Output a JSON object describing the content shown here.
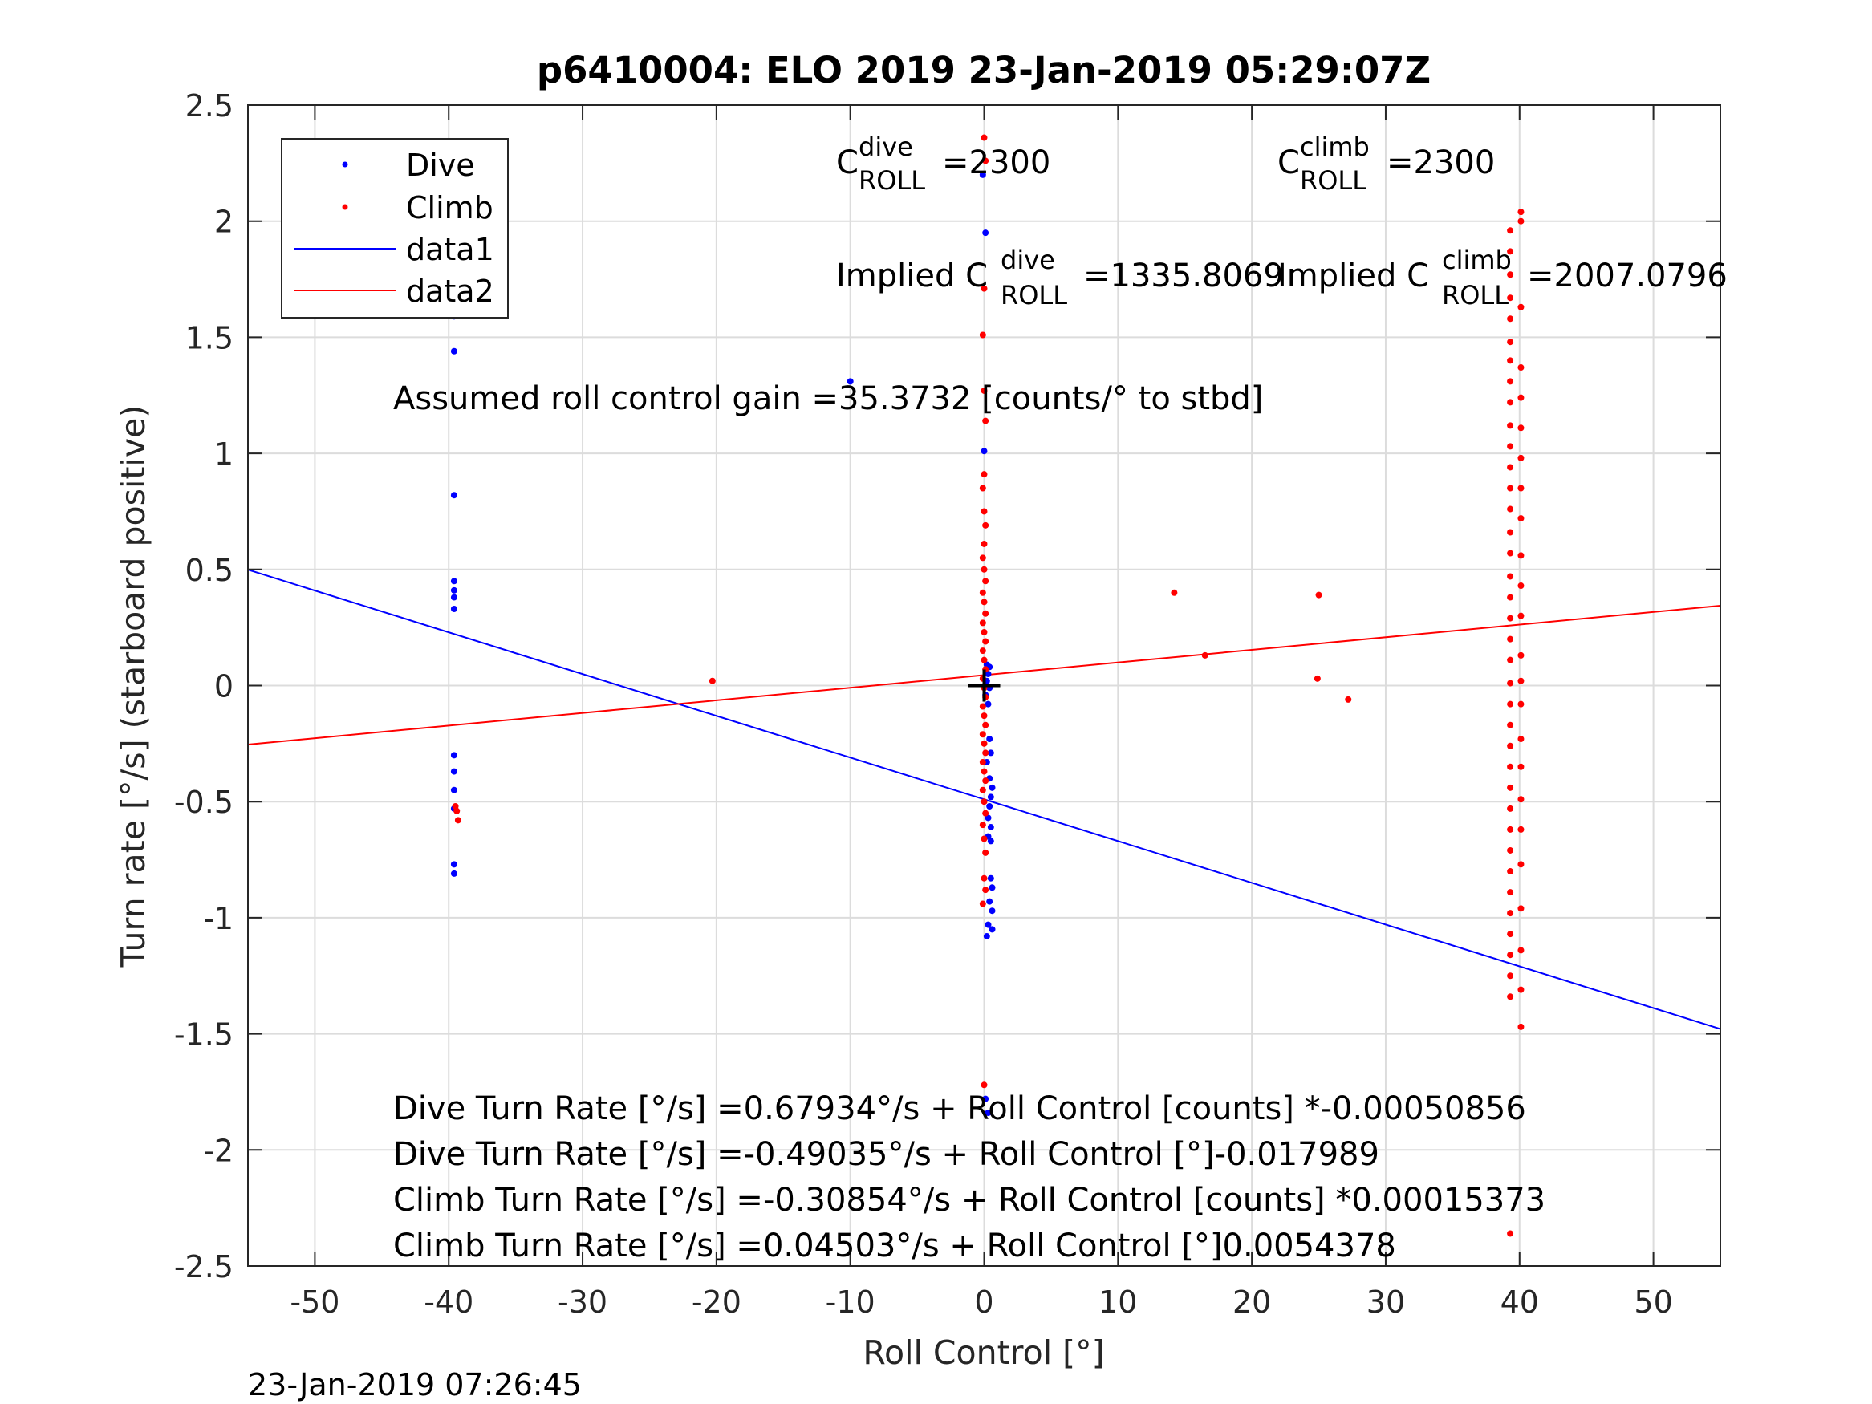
{
  "chart_data": {
    "type": "scatter",
    "title": "p6410004: ELO 2019 23-Jan-2019 05:29:07Z",
    "xlabel": "Roll Control [°]",
    "ylabel": "Turn rate [°/s] (starboard positive)",
    "xlim": [
      -55,
      55
    ],
    "ylim": [
      -2.5,
      2.5
    ],
    "xticks": [
      -50,
      -40,
      -30,
      -20,
      -10,
      0,
      10,
      20,
      30,
      40,
      50
    ],
    "yticks": [
      -2.5,
      -2,
      -1.5,
      -1,
      -0.5,
      0,
      0.5,
      1,
      1.5,
      2,
      2.5
    ],
    "ytick_labels": [
      "-2.5",
      "-2",
      "-1.5",
      "-1",
      "-0.5",
      "0",
      "0.5",
      "1",
      "1.5",
      "2",
      "2.5"
    ],
    "grid": true,
    "legend_position": "top-left",
    "series": [
      {
        "name": "Dive",
        "kind": "points",
        "color": "#0000ff",
        "points": [
          [
            -39.6,
            1.59
          ],
          [
            -39.6,
            1.44
          ],
          [
            -39.6,
            0.82
          ],
          [
            -39.6,
            0.45
          ],
          [
            -39.6,
            0.41
          ],
          [
            -39.6,
            0.38
          ],
          [
            -39.6,
            0.33
          ],
          [
            -39.6,
            -0.3
          ],
          [
            -39.6,
            -0.37
          ],
          [
            -39.6,
            -0.45
          ],
          [
            -39.6,
            -0.53
          ],
          [
            -39.6,
            -0.77
          ],
          [
            -39.6,
            -0.81
          ],
          [
            -10,
            1.31
          ],
          [
            -0.1,
            2.2
          ],
          [
            0.1,
            1.95
          ],
          [
            0,
            1.01
          ],
          [
            0.2,
            0.09
          ],
          [
            0.4,
            0.08
          ],
          [
            0.3,
            0.05
          ],
          [
            0.2,
            0.02
          ],
          [
            0.4,
            -0.01
          ],
          [
            0.1,
            -0.04
          ],
          [
            0.3,
            -0.08
          ],
          [
            0.4,
            -0.23
          ],
          [
            0.5,
            -0.29
          ],
          [
            0.2,
            -0.33
          ],
          [
            0.4,
            -0.4
          ],
          [
            0.6,
            -0.44
          ],
          [
            0.5,
            -0.48
          ],
          [
            0.4,
            -0.52
          ],
          [
            0.3,
            -0.57
          ],
          [
            0.5,
            -0.61
          ],
          [
            0.3,
            -0.65
          ],
          [
            0.5,
            -0.67
          ],
          [
            0.5,
            -0.83
          ],
          [
            0.6,
            -0.87
          ],
          [
            0.4,
            -0.93
          ],
          [
            0.6,
            -0.97
          ],
          [
            0.3,
            -1.03
          ],
          [
            0.6,
            -1.05
          ],
          [
            0.2,
            -1.08
          ],
          [
            0.1,
            -1.78
          ],
          [
            0.3,
            -1.84
          ]
        ]
      },
      {
        "name": "Climb",
        "kind": "points",
        "color": "#ff0000",
        "points": [
          [
            -39.5,
            -0.52
          ],
          [
            -39.4,
            -0.54
          ],
          [
            -39.3,
            -0.58
          ],
          [
            -20.3,
            0.02
          ],
          [
            14.2,
            0.4
          ],
          [
            16.5,
            0.13
          ],
          [
            25.0,
            0.39
          ],
          [
            24.9,
            0.03
          ],
          [
            27.2,
            -0.06
          ],
          [
            0,
            2.36
          ],
          [
            0.1,
            2.26
          ],
          [
            0,
            1.71
          ],
          [
            -0.1,
            1.51
          ],
          [
            0,
            1.27
          ],
          [
            0.1,
            1.14
          ],
          [
            0,
            0.91
          ],
          [
            -0.1,
            0.85
          ],
          [
            0,
            0.75
          ],
          [
            0.1,
            0.69
          ],
          [
            0,
            0.61
          ],
          [
            -0.1,
            0.55
          ],
          [
            0,
            0.5
          ],
          [
            0.1,
            0.45
          ],
          [
            -0.1,
            0.4
          ],
          [
            0,
            0.36
          ],
          [
            0.1,
            0.31
          ],
          [
            -0.1,
            0.27
          ],
          [
            0,
            0.23
          ],
          [
            0.1,
            0.19
          ],
          [
            -0.1,
            0.15
          ],
          [
            0,
            0.11
          ],
          [
            0.1,
            0.07
          ],
          [
            -0.1,
            0.03
          ],
          [
            0,
            -0.01
          ],
          [
            0.1,
            -0.05
          ],
          [
            -0.1,
            -0.09
          ],
          [
            0,
            -0.13
          ],
          [
            0.1,
            -0.17
          ],
          [
            -0.1,
            -0.21
          ],
          [
            0,
            -0.25
          ],
          [
            0.1,
            -0.29
          ],
          [
            -0.1,
            -0.33
          ],
          [
            0,
            -0.37
          ],
          [
            0.1,
            -0.41
          ],
          [
            -0.1,
            -0.45
          ],
          [
            0,
            -0.5
          ],
          [
            0.1,
            -0.55
          ],
          [
            -0.1,
            -0.6
          ],
          [
            0,
            -0.66
          ],
          [
            0.1,
            -0.72
          ],
          [
            0,
            -0.83
          ],
          [
            0.1,
            -0.88
          ],
          [
            -0.1,
            -0.94
          ],
          [
            0,
            -1.72
          ],
          [
            39.3,
            1.96
          ],
          [
            39.3,
            1.87
          ],
          [
            39.3,
            1.77
          ],
          [
            39.3,
            1.67
          ],
          [
            39.3,
            1.58
          ],
          [
            39.3,
            1.48
          ],
          [
            39.3,
            1.4
          ],
          [
            39.3,
            1.31
          ],
          [
            39.3,
            1.22
          ],
          [
            39.3,
            1.12
          ],
          [
            39.3,
            1.03
          ],
          [
            39.3,
            0.94
          ],
          [
            39.3,
            0.85
          ],
          [
            39.3,
            0.76
          ],
          [
            39.3,
            0.66
          ],
          [
            39.3,
            0.57
          ],
          [
            39.3,
            0.47
          ],
          [
            39.3,
            0.38
          ],
          [
            39.3,
            0.29
          ],
          [
            39.3,
            0.2
          ],
          [
            39.3,
            0.11
          ],
          [
            39.3,
            0.01
          ],
          [
            39.3,
            -0.08
          ],
          [
            39.3,
            -0.17
          ],
          [
            39.3,
            -0.26
          ],
          [
            39.3,
            -0.35
          ],
          [
            39.3,
            -0.44
          ],
          [
            39.3,
            -0.53
          ],
          [
            39.3,
            -0.62
          ],
          [
            39.3,
            -0.71
          ],
          [
            39.3,
            -0.8
          ],
          [
            39.3,
            -0.89
          ],
          [
            39.3,
            -0.98
          ],
          [
            39.3,
            -1.07
          ],
          [
            39.3,
            -1.16
          ],
          [
            39.3,
            -1.25
          ],
          [
            39.3,
            -1.34
          ],
          [
            39.3,
            -2.36
          ],
          [
            40.1,
            2.04
          ],
          [
            40.1,
            2.0
          ],
          [
            40.1,
            1.63
          ],
          [
            40.1,
            1.37
          ],
          [
            40.1,
            1.24
          ],
          [
            40.1,
            1.11
          ],
          [
            40.1,
            0.98
          ],
          [
            40.1,
            0.85
          ],
          [
            40.1,
            0.72
          ],
          [
            40.1,
            0.56
          ],
          [
            40.1,
            0.43
          ],
          [
            40.1,
            0.3
          ],
          [
            40.1,
            0.13
          ],
          [
            40.1,
            0.02
          ],
          [
            40.1,
            -0.08
          ],
          [
            40.1,
            -0.23
          ],
          [
            40.1,
            -0.35
          ],
          [
            40.1,
            -0.49
          ],
          [
            40.1,
            -0.62
          ],
          [
            40.1,
            -0.77
          ],
          [
            40.1,
            -0.96
          ],
          [
            40.1,
            -1.14
          ],
          [
            40.1,
            -1.31
          ],
          [
            40.1,
            -1.47
          ]
        ]
      },
      {
        "name": "data1",
        "kind": "line",
        "color": "#0000ff",
        "x": [
          -55,
          55
        ],
        "y": [
          0.499,
          -1.479
        ]
      },
      {
        "name": "data2",
        "kind": "line",
        "color": "#ff0000",
        "x": [
          -55,
          55
        ],
        "y": [
          -0.254,
          0.344
        ]
      },
      {
        "name": "",
        "kind": "marker",
        "shape": "plus",
        "color": "#000000",
        "points": [
          [
            0,
            0
          ]
        ]
      }
    ],
    "annotations": {
      "c_dive": {
        "base": "C",
        "sup": "dive",
        "sub": "ROLL",
        "value": "=2300"
      },
      "c_climb": {
        "base": "C",
        "sup": "climb",
        "sub": "ROLL",
        "value": "=2300"
      },
      "implied_dive": {
        "prefix": "Implied C",
        "sup": "dive",
        "sub": "ROLL",
        "value": "=1335.8069"
      },
      "implied_climb": {
        "prefix": "Implied C",
        "sup": "climb",
        "sub": "ROLL",
        "value": "=2007.0796"
      },
      "gain": "Assumed roll control gain =35.3732 [counts/° to stbd]",
      "eq1": "Dive Turn Rate [°/s] =0.67934°/s + Roll Control [counts] *-0.00050856",
      "eq2": "Dive Turn Rate [°/s] =-0.49035°/s + Roll Control [°]-0.017989",
      "eq3": "Climb Turn Rate [°/s] =-0.30854°/s + Roll Control [counts] *0.00015373",
      "eq4": "Climb Turn Rate [°/s] =0.04503°/s + Roll Control [°]0.0054378"
    }
  },
  "footer_timestamp": "23-Jan-2019 07:26:45"
}
